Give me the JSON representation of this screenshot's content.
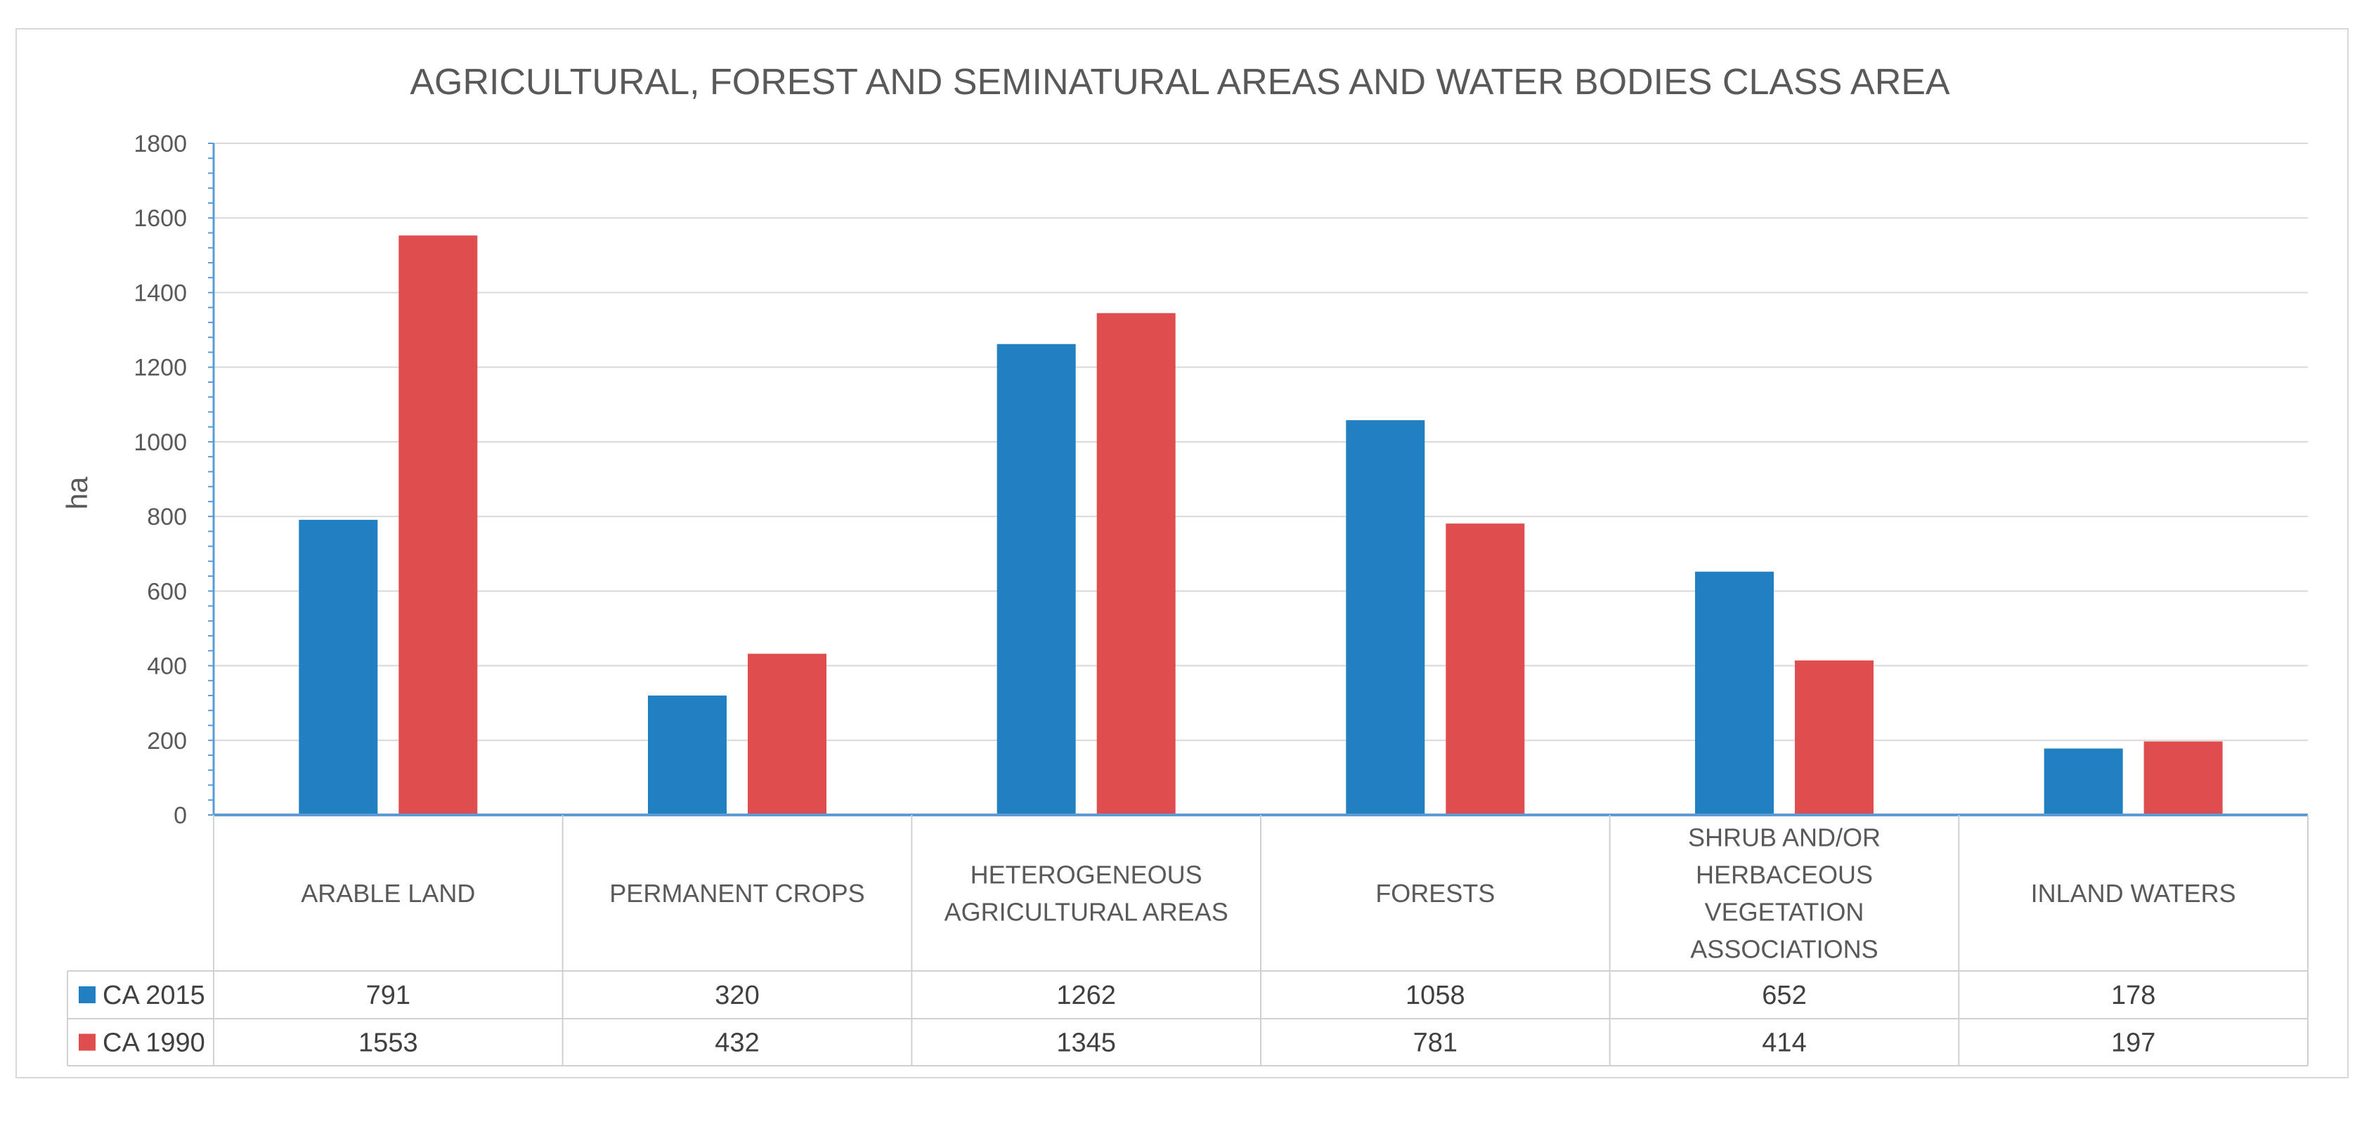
{
  "chart_data": {
    "type": "bar",
    "title": "AGRICULTURAL, FOREST AND SEMINATURAL AREAS AND WATER BODIES CLASS AREA",
    "xlabel": "",
    "ylabel": "ha",
    "ylim": [
      0,
      1800
    ],
    "ytick_step": 200,
    "yticks": [
      "0",
      "200",
      "400",
      "600",
      "800",
      "1000",
      "1200",
      "1400",
      "1600",
      "1800"
    ],
    "grid": true,
    "legend": "data-table-left",
    "categories": [
      [
        "ARABLE LAND"
      ],
      [
        "PERMANENT CROPS"
      ],
      [
        "HETEROGENEOUS",
        "AGRICULTURAL AREAS"
      ],
      [
        "FORESTS"
      ],
      [
        "SHRUB AND/OR",
        "HERBACEOUS",
        "VEGETATION",
        "ASSOCIATIONS"
      ],
      [
        "INLAND WATERS"
      ]
    ],
    "series": [
      {
        "name": "CA 2015",
        "color": "#2180C2",
        "values": [
          791,
          320,
          1262,
          1058,
          652,
          178
        ]
      },
      {
        "name": "CA 1990",
        "color": "#DE4E4E",
        "values": [
          1553,
          432,
          1345,
          781,
          414,
          197
        ]
      }
    ]
  }
}
